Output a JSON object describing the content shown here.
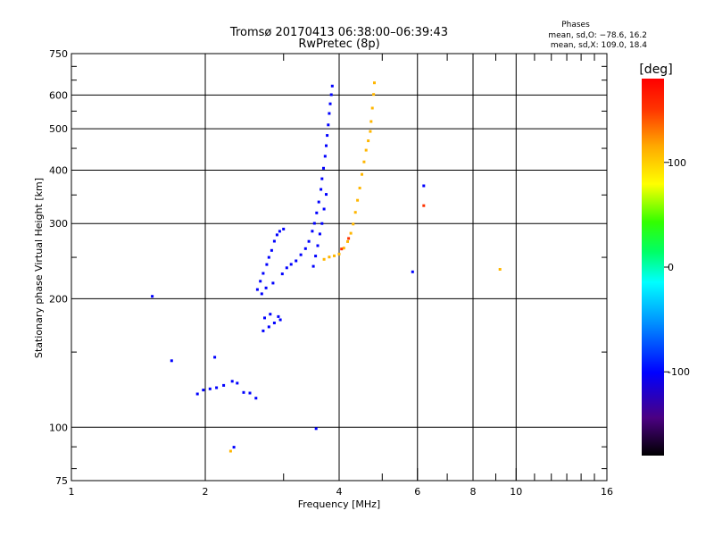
{
  "chart_data": {
    "type": "scatter",
    "title_line1": "Tromsø 20170413 06:38:00–06:39:43",
    "title_line2": "RwPretec (8p)",
    "xlabel": "Frequency [MHz]",
    "ylabel": "Stationary phase Virtual Height [km]",
    "xscale": "log",
    "yscale": "log",
    "xlim": [
      1,
      16
    ],
    "ylim": [
      75,
      750
    ],
    "xticks": [
      1,
      2,
      4,
      6,
      8,
      10,
      16
    ],
    "yticks": [
      75,
      100,
      200,
      300,
      400,
      500,
      600,
      750
    ],
    "grid": true,
    "phase_box": {
      "title": "Phases",
      "line1": "mean, sd,O: −78.6, 16.2",
      "line2": "mean, sd,X: 109.0, 18.4"
    },
    "colorbar": {
      "label": "[deg]",
      "range": [
        -180,
        180
      ],
      "ticks": [
        100,
        0,
        -100
      ]
    },
    "series": [
      {
        "mode": "O",
        "phase": -100,
        "points": [
          [
            1.52,
            202
          ],
          [
            1.68,
            143
          ],
          [
            2.1,
            146
          ],
          [
            1.92,
            120
          ],
          [
            1.98,
            122
          ],
          [
            2.05,
            123
          ],
          [
            2.12,
            124
          ],
          [
            2.2,
            125
          ],
          [
            2.3,
            128
          ],
          [
            2.36,
            127
          ],
          [
            2.44,
            121
          ],
          [
            2.52,
            120
          ],
          [
            2.6,
            117
          ],
          [
            2.32,
            90
          ],
          [
            3.55,
            99
          ],
          [
            2.7,
            168
          ],
          [
            2.78,
            172
          ],
          [
            2.86,
            176
          ],
          [
            2.72,
            180
          ],
          [
            2.8,
            184
          ],
          [
            2.92,
            182
          ],
          [
            2.95,
            178
          ],
          [
            2.62,
            210
          ],
          [
            2.66,
            220
          ],
          [
            2.7,
            230
          ],
          [
            2.75,
            240
          ],
          [
            2.78,
            250
          ],
          [
            2.82,
            260
          ],
          [
            2.86,
            272
          ],
          [
            2.9,
            282
          ],
          [
            2.94,
            288
          ],
          [
            3.0,
            292
          ],
          [
            2.68,
            205
          ],
          [
            2.74,
            212
          ],
          [
            2.84,
            218
          ],
          [
            2.98,
            228
          ],
          [
            3.05,
            236
          ],
          [
            3.12,
            241
          ],
          [
            3.2,
            246
          ],
          [
            3.28,
            253
          ],
          [
            3.36,
            262
          ],
          [
            3.42,
            273
          ],
          [
            3.48,
            287
          ],
          [
            3.52,
            300
          ],
          [
            3.56,
            318
          ],
          [
            3.6,
            338
          ],
          [
            3.64,
            360
          ],
          [
            3.66,
            382
          ],
          [
            3.69,
            405
          ],
          [
            3.72,
            430
          ],
          [
            3.74,
            456
          ],
          [
            3.76,
            483
          ],
          [
            3.78,
            512
          ],
          [
            3.8,
            542
          ],
          [
            3.82,
            572
          ],
          [
            3.84,
            602
          ],
          [
            3.86,
            628
          ],
          [
            3.5,
            238
          ],
          [
            3.54,
            252
          ],
          [
            3.58,
            267
          ],
          [
            3.62,
            283
          ],
          [
            3.66,
            300
          ],
          [
            3.7,
            325
          ],
          [
            3.74,
            350
          ],
          [
            5.85,
            231
          ],
          [
            6.2,
            368
          ]
        ]
      },
      {
        "mode": "X",
        "phase": 110,
        "points": [
          [
            3.7,
            248
          ],
          [
            3.8,
            250
          ],
          [
            3.9,
            252
          ],
          [
            4.0,
            255
          ],
          [
            4.1,
            262
          ],
          [
            4.18,
            272
          ],
          [
            4.25,
            285
          ],
          [
            4.3,
            300
          ],
          [
            4.35,
            318
          ],
          [
            4.4,
            340
          ],
          [
            4.45,
            364
          ],
          [
            4.5,
            390
          ],
          [
            4.55,
            418
          ],
          [
            4.6,
            446
          ],
          [
            4.65,
            470
          ],
          [
            4.7,
            492
          ],
          [
            4.72,
            520
          ],
          [
            4.75,
            560
          ],
          [
            4.78,
            600
          ],
          [
            4.8,
            640
          ],
          [
            2.28,
            88
          ],
          [
            9.2,
            235
          ]
        ]
      },
      {
        "mode": "X",
        "phase": 150,
        "points": [
          [
            4.05,
            262
          ],
          [
            4.2,
            276
          ],
          [
            6.2,
            330
          ]
        ]
      }
    ]
  }
}
